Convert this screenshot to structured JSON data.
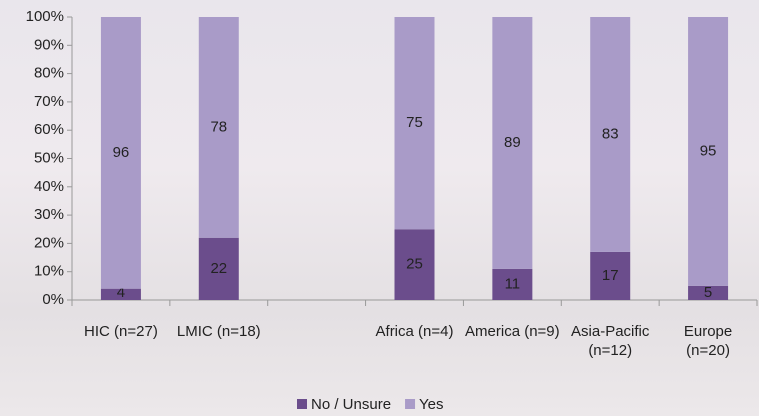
{
  "chart_data": {
    "type": "stacked_bar",
    "categories": [
      "HIC (n=27)",
      "LMIC (n=18)",
      null,
      "Africa (n=4)",
      "America (n=9)",
      "Asia-Pacific (n=12)",
      "Europe (n=20)"
    ],
    "series": [
      {
        "name": "No / Unsure",
        "color": "#6b4d8c",
        "values": [
          4,
          22,
          null,
          25,
          11,
          17,
          5
        ]
      },
      {
        "name": "Yes",
        "color": "#a99bc8",
        "values": [
          96,
          78,
          null,
          75,
          89,
          83,
          95
        ]
      }
    ],
    "ylim": [
      0,
      100
    ],
    "yticks": [
      {
        "value": 0,
        "label": "0%"
      },
      {
        "value": 10,
        "label": "10%"
      },
      {
        "value": 20,
        "label": "20%"
      },
      {
        "value": 30,
        "label": "30%"
      },
      {
        "value": 40,
        "label": "40%"
      },
      {
        "value": 50,
        "label": "50%"
      },
      {
        "value": 60,
        "label": "60%"
      },
      {
        "value": 70,
        "label": "70%"
      },
      {
        "value": 80,
        "label": "80%"
      },
      {
        "value": 90,
        "label": "90%"
      },
      {
        "value": 100,
        "label": "100%"
      }
    ],
    "grid": false,
    "legend": "bottom"
  }
}
